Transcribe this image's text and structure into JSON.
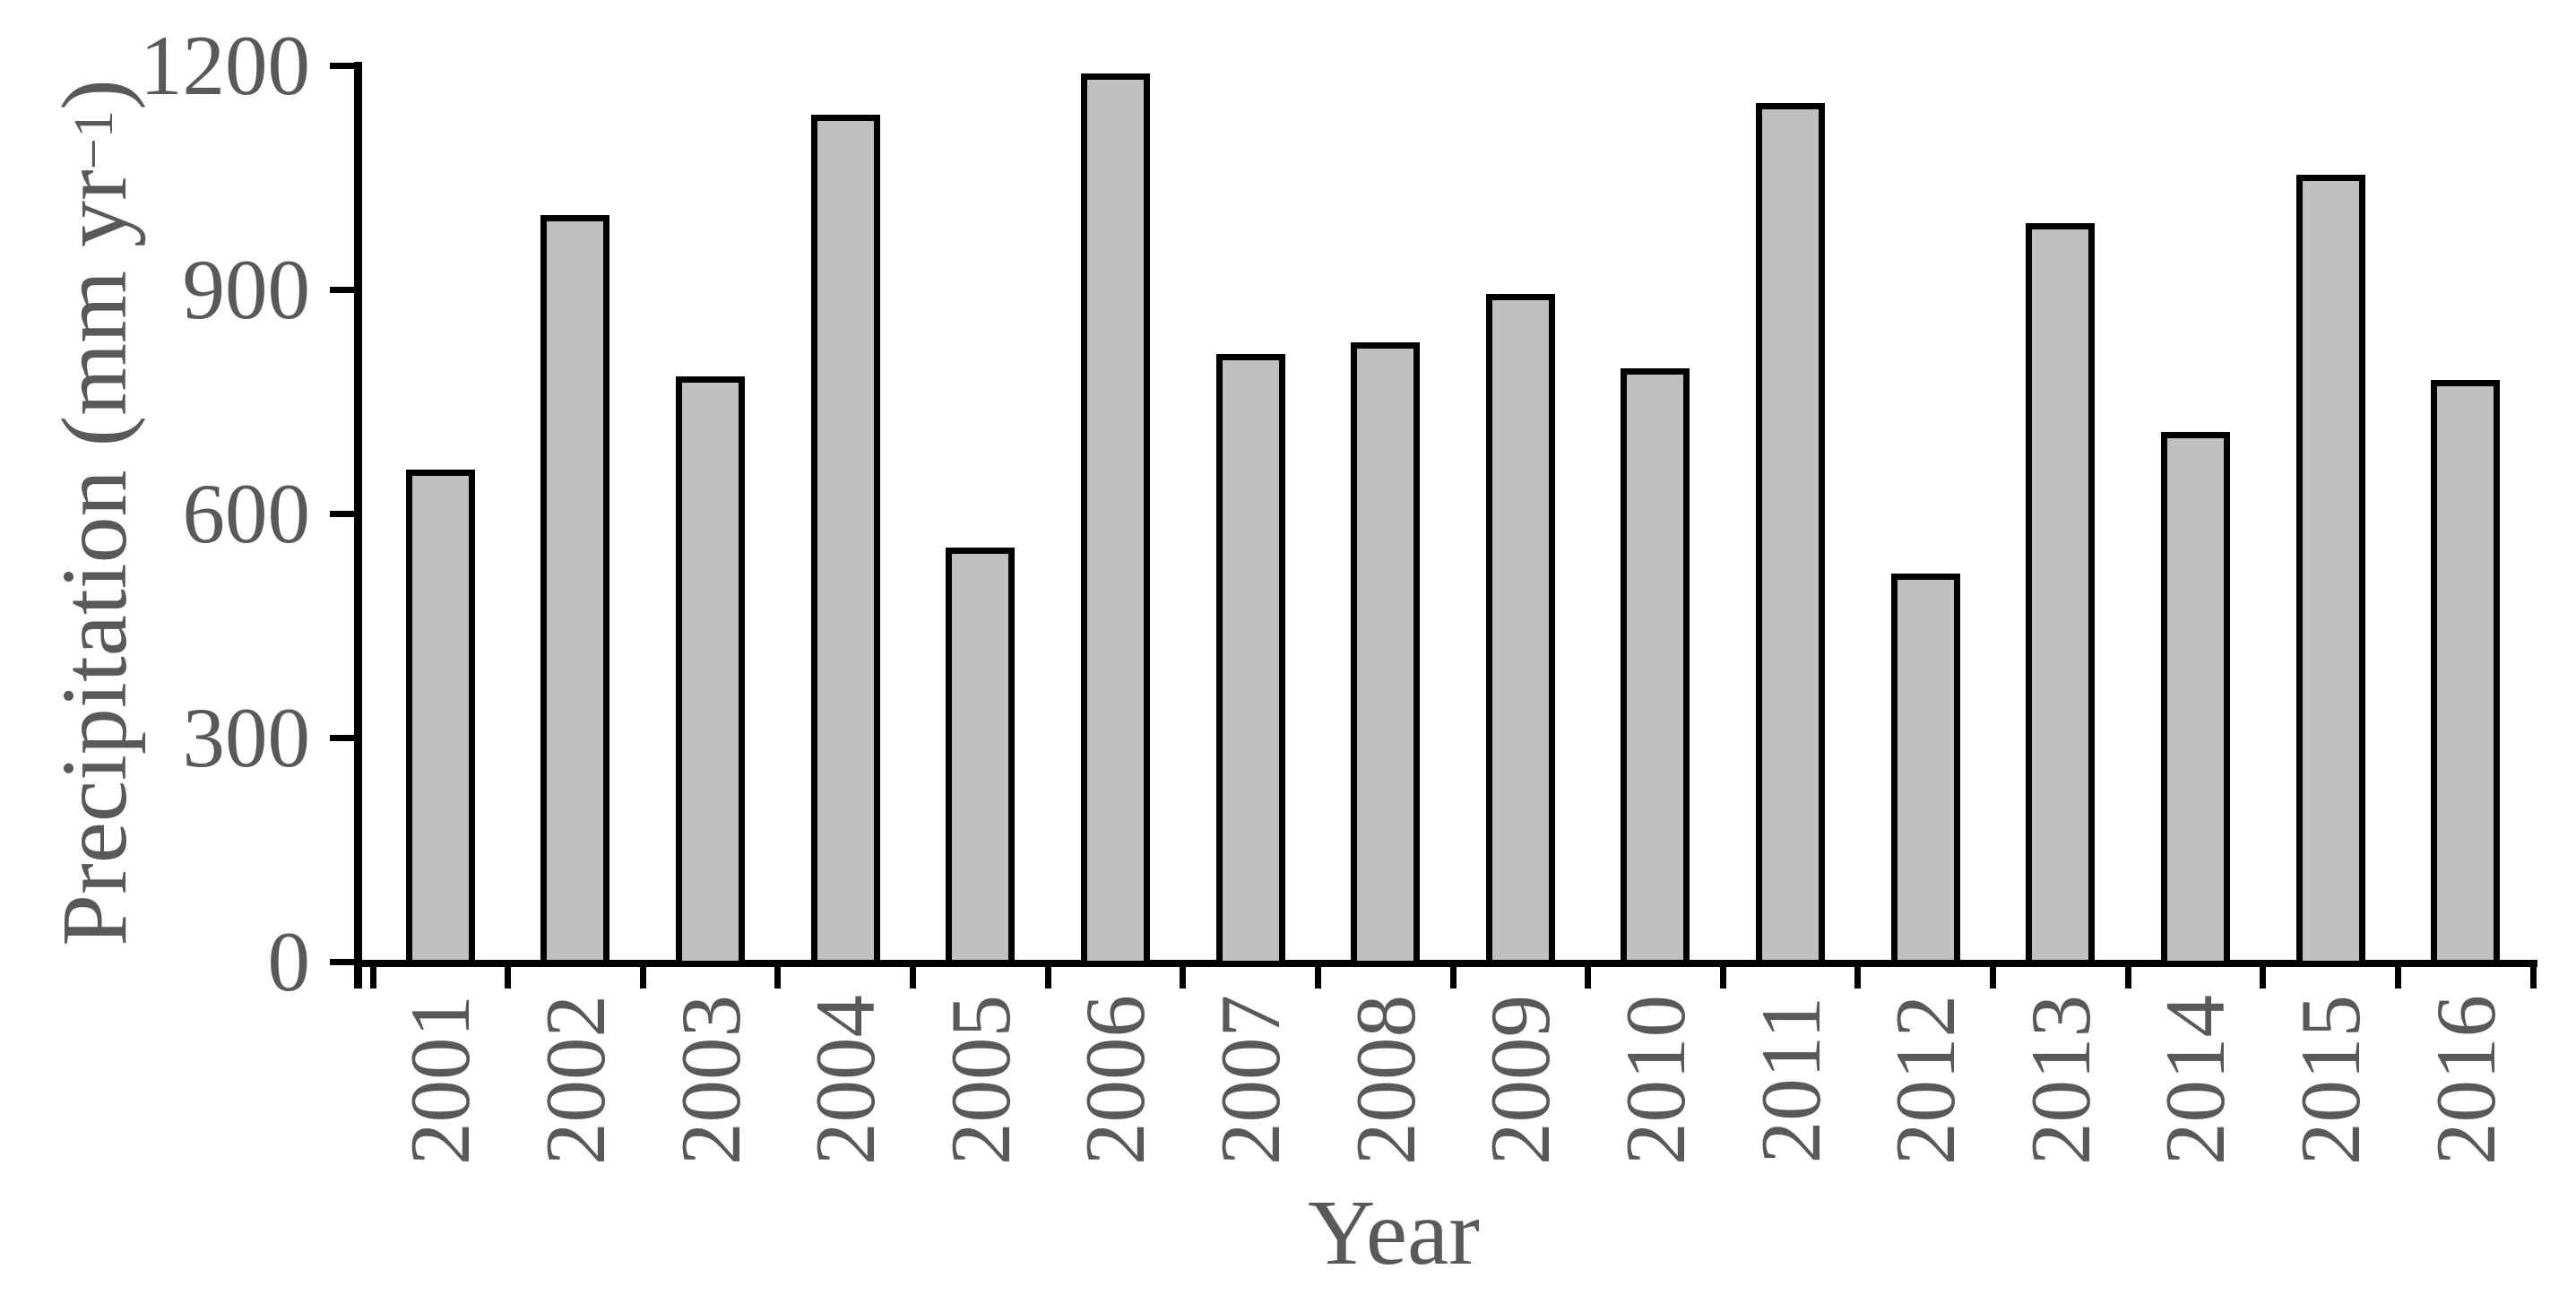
{
  "chart_data": {
    "type": "bar",
    "title": "",
    "xlabel": "Year",
    "ylabel": "Precipitation (mm yr⁻¹)",
    "ylabel_parts": {
      "prefix": "Precipitation (mm yr",
      "superscript": "−1",
      "suffix": ")"
    },
    "categories": [
      "2001",
      "2002",
      "2003",
      "2004",
      "2005",
      "2006",
      "2007",
      "2008",
      "2009",
      "2010",
      "2011",
      "2012",
      "2013",
      "2014",
      "2015",
      "2016"
    ],
    "values": [
      655,
      995,
      780,
      1130,
      550,
      1185,
      810,
      825,
      890,
      790,
      1145,
      515,
      985,
      705,
      1050,
      775
    ],
    "ylim": [
      0,
      1200
    ],
    "yticks": [
      0,
      300,
      600,
      900,
      1200
    ],
    "grid": false,
    "legend": false,
    "layout_hints": {
      "x_labels_rotated_90": true,
      "ticks_outside": true
    },
    "colors": {
      "bar_fill": "#BFBFBF",
      "bar_border": "#000000",
      "axis": "#000000",
      "text": "#595959"
    }
  }
}
